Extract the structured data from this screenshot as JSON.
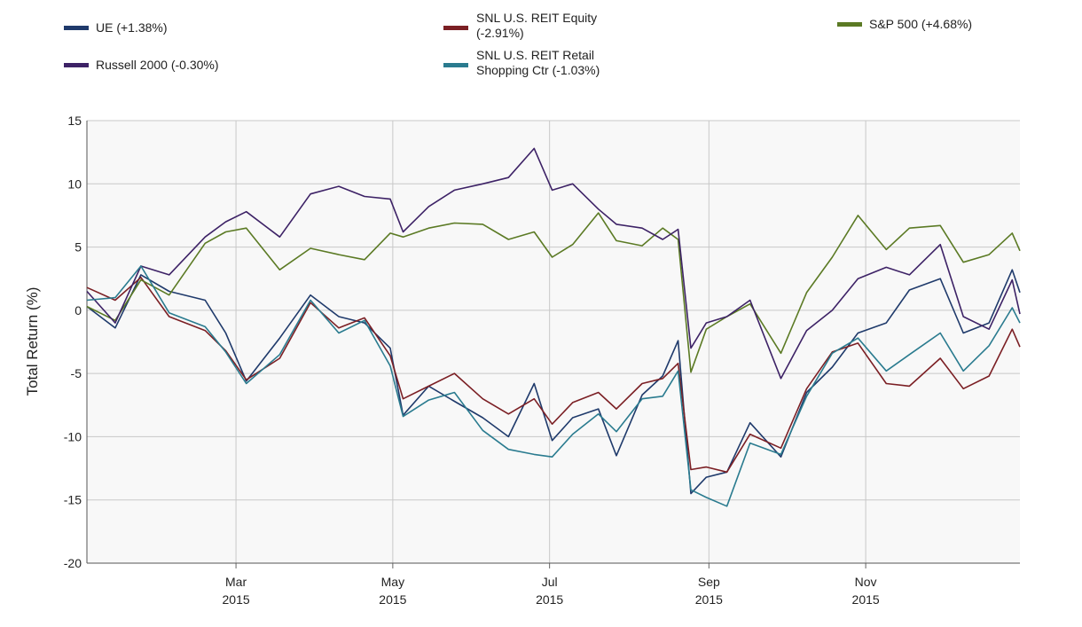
{
  "chart_data": {
    "type": "line",
    "ylabel": "Total Return (%)",
    "ylim": [
      -20,
      15
    ],
    "yticks": [
      15,
      10,
      5,
      0,
      -5,
      -10,
      -15,
      -20
    ],
    "xlim": [
      "2015-01-02",
      "2015-12-31"
    ],
    "xticks": [
      {
        "date": "2015-03-01",
        "month": "Mar",
        "year": "2015"
      },
      {
        "date": "2015-05-01",
        "month": "May",
        "year": "2015"
      },
      {
        "date": "2015-07-01",
        "month": "Jul",
        "year": "2015"
      },
      {
        "date": "2015-09-01",
        "month": "Sep",
        "year": "2015"
      },
      {
        "date": "2015-11-01",
        "month": "Nov",
        "year": "2015"
      }
    ],
    "grid": true,
    "legend_position": "top",
    "series": [
      {
        "name": "UE (+1.38%)",
        "color": "#1f3a6b",
        "points": [
          [
            "2015-01-02",
            0.3
          ],
          [
            "2015-01-13",
            -1.4
          ],
          [
            "2015-01-23",
            2.8
          ],
          [
            "2015-02-03",
            1.5
          ],
          [
            "2015-02-17",
            0.8
          ],
          [
            "2015-02-25",
            -1.8
          ],
          [
            "2015-03-05",
            -5.6
          ],
          [
            "2015-03-18",
            -2.2
          ],
          [
            "2015-03-30",
            1.2
          ],
          [
            "2015-04-10",
            -0.5
          ],
          [
            "2015-04-20",
            -1.0
          ],
          [
            "2015-04-30",
            -3.0
          ],
          [
            "2015-05-05",
            -8.3
          ],
          [
            "2015-05-15",
            -6.0
          ],
          [
            "2015-05-25",
            -7.2
          ],
          [
            "2015-06-05",
            -8.5
          ],
          [
            "2015-06-15",
            -10.0
          ],
          [
            "2015-06-25",
            -5.8
          ],
          [
            "2015-07-02",
            -10.3
          ],
          [
            "2015-07-10",
            -8.5
          ],
          [
            "2015-07-20",
            -7.8
          ],
          [
            "2015-07-27",
            -11.5
          ],
          [
            "2015-08-06",
            -6.7
          ],
          [
            "2015-08-14",
            -5.2
          ],
          [
            "2015-08-20",
            -2.4
          ],
          [
            "2015-08-25",
            -14.5
          ],
          [
            "2015-08-31",
            -13.2
          ],
          [
            "2015-09-08",
            -12.8
          ],
          [
            "2015-09-17",
            -8.9
          ],
          [
            "2015-09-29",
            -11.6
          ],
          [
            "2015-10-09",
            -6.5
          ],
          [
            "2015-10-19",
            -4.5
          ],
          [
            "2015-10-29",
            -1.8
          ],
          [
            "2015-11-09",
            -1.0
          ],
          [
            "2015-11-18",
            1.6
          ],
          [
            "2015-11-30",
            2.5
          ],
          [
            "2015-12-09",
            -1.8
          ],
          [
            "2015-12-19",
            -1.0
          ],
          [
            "2015-12-28",
            3.2
          ],
          [
            "2015-12-31",
            1.4
          ]
        ]
      },
      {
        "name": "SNL U.S. REIT Equity (-2.91%)",
        "color": "#7b1f24",
        "points": [
          [
            "2015-01-02",
            1.8
          ],
          [
            "2015-01-13",
            0.8
          ],
          [
            "2015-01-23",
            2.6
          ],
          [
            "2015-02-03",
            -0.5
          ],
          [
            "2015-02-17",
            -1.6
          ],
          [
            "2015-02-25",
            -3.2
          ],
          [
            "2015-03-05",
            -5.5
          ],
          [
            "2015-03-18",
            -3.8
          ],
          [
            "2015-03-30",
            0.6
          ],
          [
            "2015-04-10",
            -1.4
          ],
          [
            "2015-04-20",
            -0.6
          ],
          [
            "2015-04-30",
            -3.6
          ],
          [
            "2015-05-05",
            -7.0
          ],
          [
            "2015-05-15",
            -6.0
          ],
          [
            "2015-05-25",
            -5.0
          ],
          [
            "2015-06-05",
            -7.0
          ],
          [
            "2015-06-15",
            -8.2
          ],
          [
            "2015-06-25",
            -7.0
          ],
          [
            "2015-07-02",
            -9.0
          ],
          [
            "2015-07-10",
            -7.3
          ],
          [
            "2015-07-20",
            -6.5
          ],
          [
            "2015-07-27",
            -7.8
          ],
          [
            "2015-08-06",
            -5.8
          ],
          [
            "2015-08-14",
            -5.4
          ],
          [
            "2015-08-20",
            -4.2
          ],
          [
            "2015-08-25",
            -12.6
          ],
          [
            "2015-08-31",
            -12.4
          ],
          [
            "2015-09-08",
            -12.8
          ],
          [
            "2015-09-17",
            -9.8
          ],
          [
            "2015-09-29",
            -10.9
          ],
          [
            "2015-10-09",
            -6.2
          ],
          [
            "2015-10-19",
            -3.3
          ],
          [
            "2015-10-29",
            -2.6
          ],
          [
            "2015-11-09",
            -5.8
          ],
          [
            "2015-11-18",
            -6.0
          ],
          [
            "2015-11-30",
            -3.8
          ],
          [
            "2015-12-09",
            -6.2
          ],
          [
            "2015-12-19",
            -5.2
          ],
          [
            "2015-12-28",
            -1.5
          ],
          [
            "2015-12-31",
            -2.9
          ]
        ]
      },
      {
        "name": "S&P 500 (+4.68%)",
        "color": "#5b7a24",
        "points": [
          [
            "2015-01-02",
            0.3
          ],
          [
            "2015-01-13",
            -0.8
          ],
          [
            "2015-01-23",
            2.4
          ],
          [
            "2015-02-03",
            1.2
          ],
          [
            "2015-02-17",
            5.3
          ],
          [
            "2015-02-25",
            6.2
          ],
          [
            "2015-03-05",
            6.5
          ],
          [
            "2015-03-18",
            3.2
          ],
          [
            "2015-03-30",
            4.9
          ],
          [
            "2015-04-10",
            4.4
          ],
          [
            "2015-04-20",
            4.0
          ],
          [
            "2015-04-30",
            6.1
          ],
          [
            "2015-05-05",
            5.8
          ],
          [
            "2015-05-15",
            6.5
          ],
          [
            "2015-05-25",
            6.9
          ],
          [
            "2015-06-05",
            6.8
          ],
          [
            "2015-06-15",
            5.6
          ],
          [
            "2015-06-25",
            6.2
          ],
          [
            "2015-07-02",
            4.2
          ],
          [
            "2015-07-10",
            5.2
          ],
          [
            "2015-07-20",
            7.7
          ],
          [
            "2015-07-27",
            5.5
          ],
          [
            "2015-08-06",
            5.1
          ],
          [
            "2015-08-14",
            6.5
          ],
          [
            "2015-08-20",
            5.6
          ],
          [
            "2015-08-25",
            -4.9
          ],
          [
            "2015-08-31",
            -1.5
          ],
          [
            "2015-09-08",
            -0.5
          ],
          [
            "2015-09-17",
            0.5
          ],
          [
            "2015-09-29",
            -3.4
          ],
          [
            "2015-10-09",
            1.4
          ],
          [
            "2015-10-19",
            4.2
          ],
          [
            "2015-10-29",
            7.5
          ],
          [
            "2015-11-09",
            4.8
          ],
          [
            "2015-11-18",
            6.5
          ],
          [
            "2015-11-30",
            6.7
          ],
          [
            "2015-12-09",
            3.8
          ],
          [
            "2015-12-19",
            4.4
          ],
          [
            "2015-12-28",
            6.1
          ],
          [
            "2015-12-31",
            4.7
          ]
        ]
      },
      {
        "name": "Russell 2000 (-0.30%)",
        "color": "#3d2266",
        "points": [
          [
            "2015-01-02",
            1.5
          ],
          [
            "2015-01-13",
            -1.0
          ],
          [
            "2015-01-23",
            3.5
          ],
          [
            "2015-02-03",
            2.8
          ],
          [
            "2015-02-17",
            5.8
          ],
          [
            "2015-02-25",
            7.0
          ],
          [
            "2015-03-05",
            7.8
          ],
          [
            "2015-03-18",
            5.8
          ],
          [
            "2015-03-30",
            9.2
          ],
          [
            "2015-04-10",
            9.8
          ],
          [
            "2015-04-20",
            9.0
          ],
          [
            "2015-04-30",
            8.8
          ],
          [
            "2015-05-05",
            6.2
          ],
          [
            "2015-05-15",
            8.2
          ],
          [
            "2015-05-25",
            9.5
          ],
          [
            "2015-06-05",
            10.0
          ],
          [
            "2015-06-15",
            10.5
          ],
          [
            "2015-06-25",
            12.8
          ],
          [
            "2015-07-02",
            9.5
          ],
          [
            "2015-07-10",
            10.0
          ],
          [
            "2015-07-20",
            8.0
          ],
          [
            "2015-07-27",
            6.8
          ],
          [
            "2015-08-06",
            6.5
          ],
          [
            "2015-08-14",
            5.6
          ],
          [
            "2015-08-20",
            6.4
          ],
          [
            "2015-08-25",
            -3.0
          ],
          [
            "2015-08-31",
            -1.0
          ],
          [
            "2015-09-08",
            -0.5
          ],
          [
            "2015-09-17",
            0.8
          ],
          [
            "2015-09-29",
            -5.4
          ],
          [
            "2015-10-09",
            -1.6
          ],
          [
            "2015-10-19",
            0.0
          ],
          [
            "2015-10-29",
            2.5
          ],
          [
            "2015-11-09",
            3.4
          ],
          [
            "2015-11-18",
            2.8
          ],
          [
            "2015-11-30",
            5.2
          ],
          [
            "2015-12-09",
            -0.5
          ],
          [
            "2015-12-19",
            -1.5
          ],
          [
            "2015-12-28",
            2.4
          ],
          [
            "2015-12-31",
            -0.3
          ]
        ]
      },
      {
        "name": "SNL U.S. REIT Retail Shopping Ctr (-1.03%)",
        "color": "#2a7b8f",
        "points": [
          [
            "2015-01-02",
            0.8
          ],
          [
            "2015-01-13",
            1.0
          ],
          [
            "2015-01-23",
            3.5
          ],
          [
            "2015-02-03",
            -0.2
          ],
          [
            "2015-02-17",
            -1.3
          ],
          [
            "2015-02-25",
            -3.3
          ],
          [
            "2015-03-05",
            -5.8
          ],
          [
            "2015-03-18",
            -3.5
          ],
          [
            "2015-03-30",
            0.8
          ],
          [
            "2015-04-10",
            -1.8
          ],
          [
            "2015-04-20",
            -0.8
          ],
          [
            "2015-04-30",
            -4.4
          ],
          [
            "2015-05-05",
            -8.4
          ],
          [
            "2015-05-15",
            -7.1
          ],
          [
            "2015-05-25",
            -6.5
          ],
          [
            "2015-06-05",
            -9.5
          ],
          [
            "2015-06-15",
            -11.0
          ],
          [
            "2015-06-25",
            -11.4
          ],
          [
            "2015-07-02",
            -11.6
          ],
          [
            "2015-07-10",
            -9.8
          ],
          [
            "2015-07-20",
            -8.2
          ],
          [
            "2015-07-27",
            -9.6
          ],
          [
            "2015-08-06",
            -7.0
          ],
          [
            "2015-08-14",
            -6.8
          ],
          [
            "2015-08-20",
            -4.8
          ],
          [
            "2015-08-25",
            -14.2
          ],
          [
            "2015-08-31",
            -14.8
          ],
          [
            "2015-09-08",
            -15.5
          ],
          [
            "2015-09-17",
            -10.5
          ],
          [
            "2015-09-29",
            -11.4
          ],
          [
            "2015-10-09",
            -6.8
          ],
          [
            "2015-10-19",
            -3.4
          ],
          [
            "2015-10-29",
            -2.2
          ],
          [
            "2015-11-09",
            -4.8
          ],
          [
            "2015-11-18",
            -3.5
          ],
          [
            "2015-11-30",
            -1.8
          ],
          [
            "2015-12-09",
            -4.8
          ],
          [
            "2015-12-19",
            -2.8
          ],
          [
            "2015-12-28",
            0.2
          ],
          [
            "2015-12-31",
            -1.0
          ]
        ]
      }
    ]
  },
  "legend": [
    {
      "label": "UE (+1.38%)",
      "color": "#1f3a6b"
    },
    {
      "label": "SNL U.S. REIT Equity\n(-2.91%)",
      "color": "#7b1f24"
    },
    {
      "label": "S&P 500 (+4.68%)",
      "color": "#5b7a24"
    },
    {
      "label": "Russell 2000 (-0.30%)",
      "color": "#3d2266"
    },
    {
      "label": "SNL U.S. REIT Retail\nShopping Ctr (-1.03%)",
      "color": "#2a7b8f"
    }
  ]
}
